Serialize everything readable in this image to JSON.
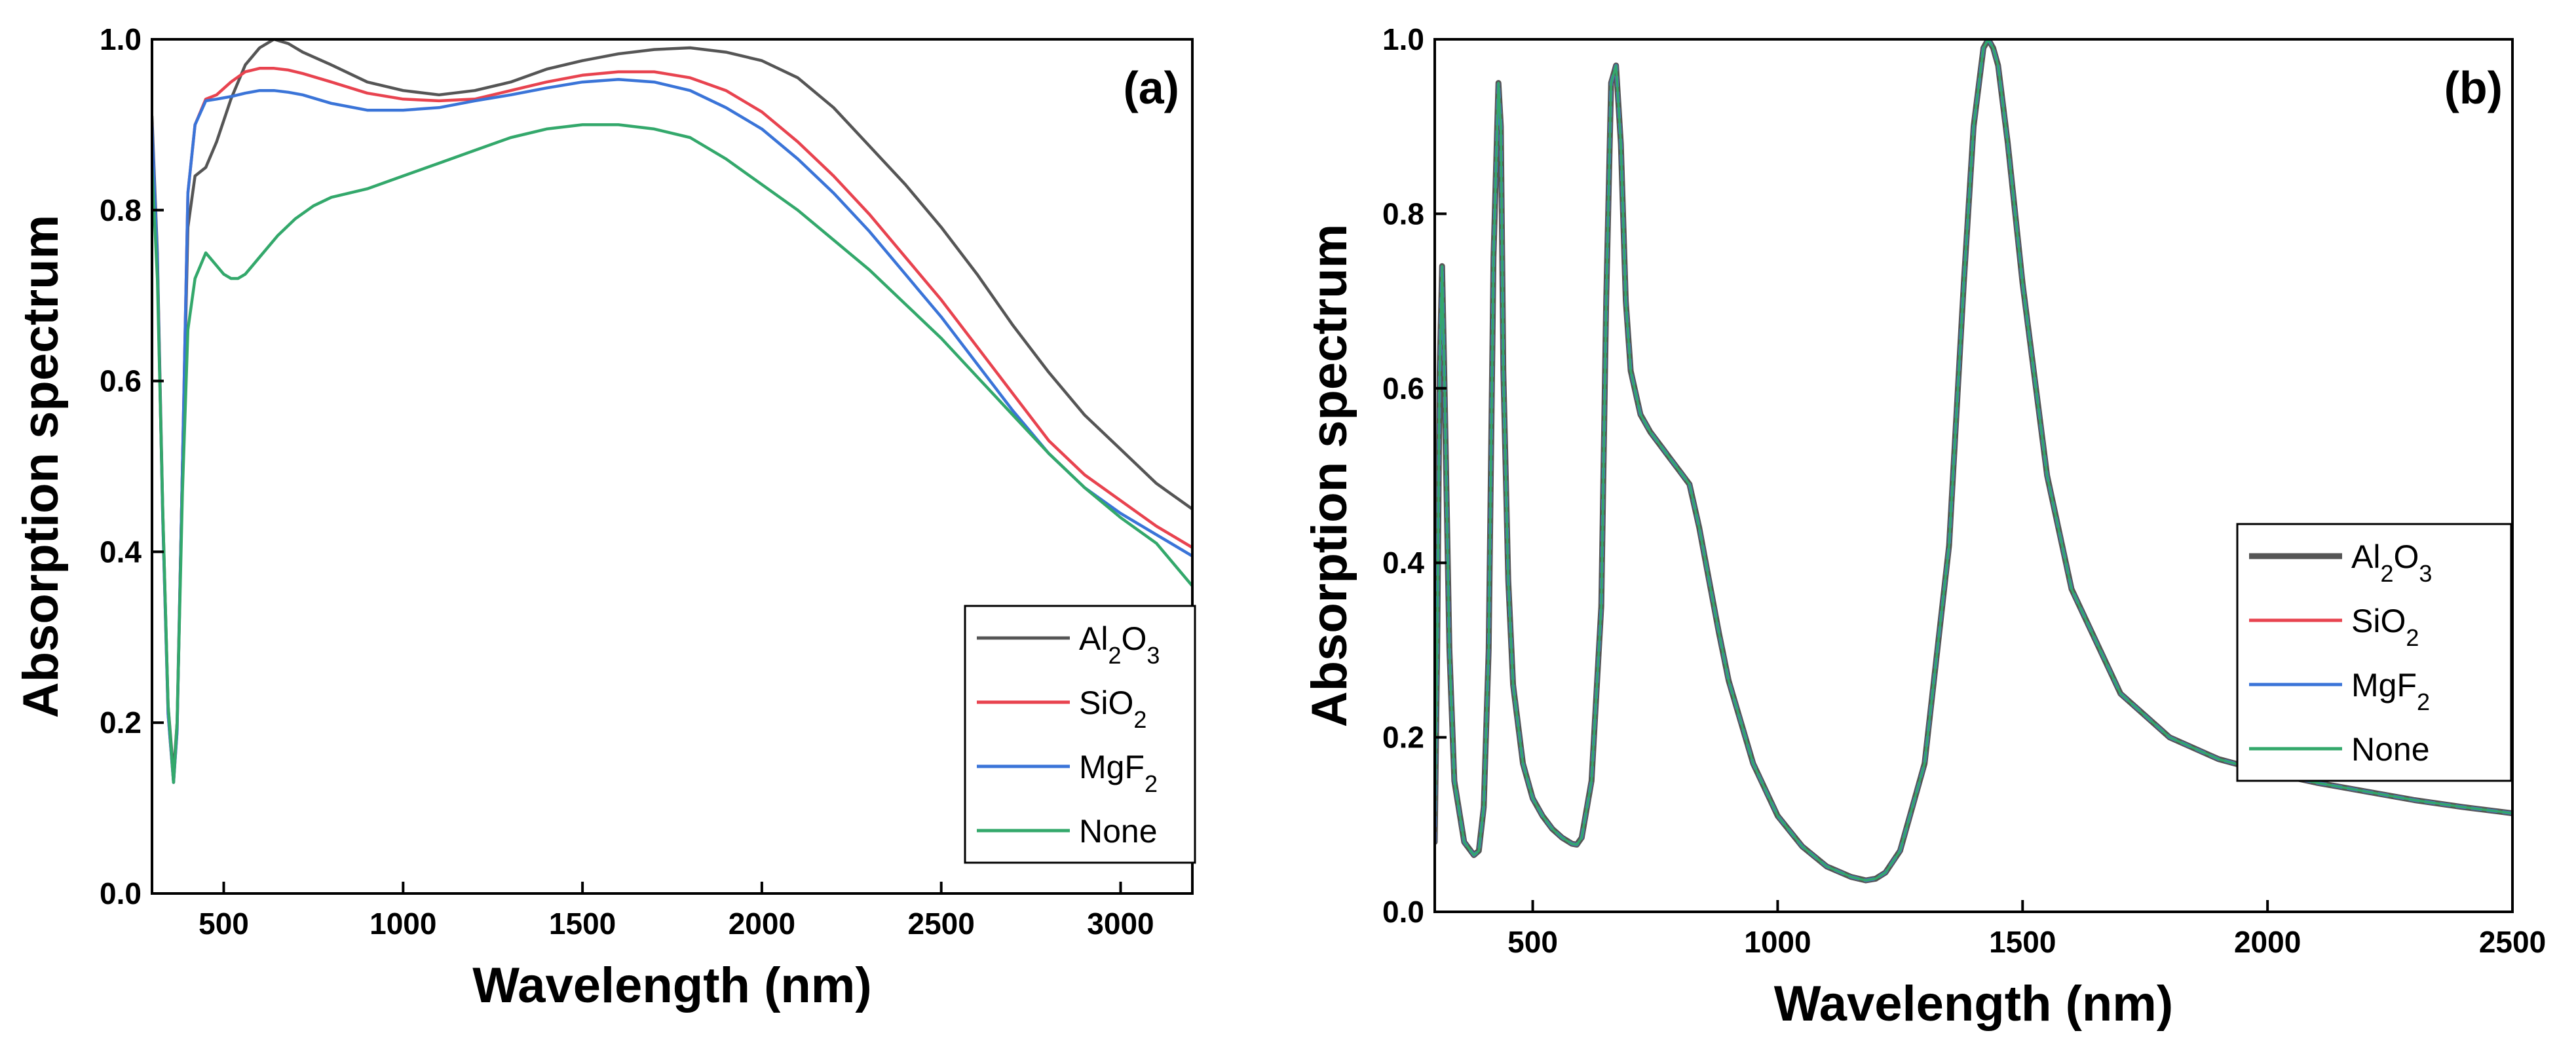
{
  "chart_data": [
    {
      "type": "line",
      "panel_label": "(a)",
      "xlabel": "Wavelength (nm)",
      "ylabel": "Absorption spectrum",
      "xlim": [
        300,
        3200
      ],
      "ylim": [
        0.0,
        1.0
      ],
      "xticks": [
        500,
        1000,
        1500,
        2000,
        2500,
        3000
      ],
      "yticks": [
        0.0,
        0.2,
        0.4,
        0.6,
        0.8,
        1.0
      ],
      "legend_position": "bottom-right",
      "series": [
        {
          "name": "Al2O3",
          "sub": "Al2O3",
          "color": "#555555",
          "x": [
            300,
            315,
            330,
            345,
            360,
            370,
            385,
            400,
            420,
            450,
            480,
            520,
            560,
            600,
            640,
            680,
            720,
            800,
            900,
            1000,
            1100,
            1200,
            1300,
            1400,
            1500,
            1600,
            1700,
            1800,
            1900,
            2000,
            2100,
            2200,
            2300,
            2400,
            2500,
            2600,
            2700,
            2800,
            2900,
            3000,
            3100,
            3200
          ],
          "y": [
            0.91,
            0.75,
            0.45,
            0.22,
            0.14,
            0.2,
            0.5,
            0.78,
            0.84,
            0.85,
            0.88,
            0.93,
            0.97,
            0.99,
            1.0,
            0.995,
            0.985,
            0.97,
            0.95,
            0.94,
            0.935,
            0.94,
            0.95,
            0.965,
            0.975,
            0.983,
            0.988,
            0.99,
            0.985,
            0.975,
            0.955,
            0.92,
            0.875,
            0.83,
            0.78,
            0.725,
            0.665,
            0.61,
            0.56,
            0.52,
            0.48,
            0.45
          ]
        },
        {
          "name": "SiO2",
          "sub": "SiO2",
          "color": "#e8434f",
          "x": [
            300,
            315,
            330,
            345,
            360,
            370,
            385,
            400,
            420,
            450,
            480,
            520,
            560,
            600,
            640,
            680,
            720,
            800,
            900,
            1000,
            1100,
            1200,
            1300,
            1400,
            1500,
            1600,
            1700,
            1800,
            1900,
            2000,
            2100,
            2200,
            2300,
            2400,
            2500,
            2600,
            2700,
            2800,
            2900,
            3000,
            3100,
            3200
          ],
          "y": [
            0.9,
            0.74,
            0.44,
            0.21,
            0.13,
            0.19,
            0.5,
            0.82,
            0.9,
            0.93,
            0.935,
            0.95,
            0.962,
            0.966,
            0.966,
            0.964,
            0.96,
            0.95,
            0.937,
            0.93,
            0.928,
            0.93,
            0.94,
            0.95,
            0.958,
            0.962,
            0.962,
            0.955,
            0.94,
            0.915,
            0.88,
            0.84,
            0.795,
            0.745,
            0.695,
            0.64,
            0.585,
            0.53,
            0.49,
            0.46,
            0.43,
            0.405
          ]
        },
        {
          "name": "MgF2",
          "sub": "MgF2",
          "color": "#3a74d8",
          "x": [
            300,
            315,
            330,
            345,
            360,
            370,
            385,
            400,
            420,
            450,
            480,
            520,
            560,
            600,
            640,
            680,
            720,
            800,
            900,
            1000,
            1100,
            1200,
            1300,
            1400,
            1500,
            1600,
            1700,
            1800,
            1900,
            2000,
            2100,
            2200,
            2300,
            2400,
            2500,
            2600,
            2700,
            2800,
            2900,
            3000,
            3100,
            3200
          ],
          "y": [
            0.9,
            0.74,
            0.44,
            0.21,
            0.13,
            0.19,
            0.5,
            0.82,
            0.9,
            0.928,
            0.93,
            0.933,
            0.937,
            0.94,
            0.94,
            0.938,
            0.935,
            0.925,
            0.917,
            0.917,
            0.92,
            0.928,
            0.935,
            0.943,
            0.95,
            0.953,
            0.95,
            0.94,
            0.92,
            0.895,
            0.86,
            0.82,
            0.775,
            0.725,
            0.675,
            0.62,
            0.565,
            0.515,
            0.475,
            0.445,
            0.42,
            0.395
          ]
        },
        {
          "name": "None",
          "sub": "None",
          "color": "#33a86b",
          "x": [
            300,
            315,
            330,
            345,
            360,
            370,
            385,
            400,
            420,
            450,
            480,
            500,
            520,
            540,
            560,
            600,
            650,
            700,
            750,
            800,
            900,
            1000,
            1100,
            1200,
            1300,
            1400,
            1500,
            1600,
            1700,
            1800,
            1900,
            2000,
            2100,
            2200,
            2300,
            2400,
            2500,
            2600,
            2700,
            2800,
            2900,
            3000,
            3100,
            3200
          ],
          "y": [
            0.85,
            0.72,
            0.45,
            0.22,
            0.13,
            0.2,
            0.47,
            0.66,
            0.72,
            0.75,
            0.735,
            0.725,
            0.72,
            0.72,
            0.725,
            0.745,
            0.77,
            0.79,
            0.805,
            0.815,
            0.825,
            0.84,
            0.855,
            0.87,
            0.885,
            0.895,
            0.9,
            0.9,
            0.895,
            0.885,
            0.86,
            0.83,
            0.8,
            0.765,
            0.73,
            0.69,
            0.65,
            0.605,
            0.56,
            0.515,
            0.475,
            0.44,
            0.41,
            0.36
          ]
        }
      ]
    },
    {
      "type": "line",
      "panel_label": "(b)",
      "xlabel": "Wavelength (nm)",
      "ylabel": "Absorption spectrum",
      "xlim": [
        300,
        2500
      ],
      "ylim": [
        0.0,
        1.0
      ],
      "xticks": [
        500,
        1000,
        1500,
        2000,
        2500
      ],
      "yticks": [
        0.0,
        0.2,
        0.4,
        0.6,
        0.8,
        1.0
      ],
      "legend_position": "center-right",
      "series": [
        {
          "name": "Al2O3",
          "sub": "Al2O3",
          "color": "#555555",
          "x": [
            300,
            305,
            310,
            315,
            320,
            330,
            340,
            360,
            380,
            390,
            400,
            410,
            420,
            430,
            435,
            440,
            450,
            460,
            480,
            500,
            520,
            540,
            560,
            580,
            590,
            600,
            620,
            640,
            650,
            660,
            670,
            680,
            690,
            700,
            720,
            740,
            760,
            780,
            800,
            820,
            840,
            860,
            880,
            900,
            950,
            1000,
            1050,
            1100,
            1150,
            1180,
            1200,
            1220,
            1250,
            1300,
            1350,
            1380,
            1400,
            1420,
            1430,
            1440,
            1450,
            1470,
            1500,
            1550,
            1600,
            1700,
            1800,
            1900,
            2000,
            2100,
            2200,
            2300,
            2400,
            2500
          ],
          "y": [
            0.08,
            0.3,
            0.62,
            0.74,
            0.6,
            0.3,
            0.15,
            0.08,
            0.065,
            0.07,
            0.12,
            0.3,
            0.75,
            0.95,
            0.9,
            0.62,
            0.38,
            0.26,
            0.17,
            0.13,
            0.11,
            0.095,
            0.085,
            0.078,
            0.077,
            0.085,
            0.15,
            0.35,
            0.7,
            0.95,
            0.97,
            0.88,
            0.7,
            0.62,
            0.57,
            0.55,
            0.535,
            0.52,
            0.505,
            0.49,
            0.44,
            0.38,
            0.32,
            0.265,
            0.17,
            0.11,
            0.075,
            0.052,
            0.04,
            0.036,
            0.038,
            0.045,
            0.07,
            0.17,
            0.42,
            0.72,
            0.9,
            0.99,
            1.0,
            0.99,
            0.97,
            0.88,
            0.72,
            0.5,
            0.37,
            0.25,
            0.2,
            0.175,
            0.16,
            0.148,
            0.138,
            0.128,
            0.12,
            0.113
          ]
        },
        {
          "name": "SiO2",
          "sub": "SiO2",
          "color": "#e8434f",
          "x": [
            300,
            305,
            310,
            315,
            320,
            330,
            340,
            360,
            380,
            390,
            400,
            410,
            420,
            430,
            435,
            440,
            450,
            460,
            480,
            500,
            520,
            540,
            560,
            580,
            590,
            600,
            620,
            640,
            650,
            660,
            670,
            680,
            690,
            700,
            720,
            740,
            760,
            780,
            800,
            820,
            840,
            860,
            880,
            900,
            950,
            1000,
            1050,
            1100,
            1150,
            1180,
            1200,
            1220,
            1250,
            1300,
            1350,
            1380,
            1400,
            1420,
            1430,
            1440,
            1450,
            1470,
            1500,
            1550,
            1600,
            1700,
            1800,
            1900,
            2000,
            2100,
            2200,
            2300,
            2400,
            2500
          ],
          "y": [
            0.08,
            0.3,
            0.62,
            0.74,
            0.6,
            0.3,
            0.15,
            0.08,
            0.065,
            0.07,
            0.12,
            0.3,
            0.75,
            0.95,
            0.9,
            0.62,
            0.38,
            0.26,
            0.17,
            0.13,
            0.11,
            0.095,
            0.085,
            0.078,
            0.077,
            0.085,
            0.15,
            0.35,
            0.7,
            0.95,
            0.97,
            0.88,
            0.7,
            0.62,
            0.57,
            0.55,
            0.535,
            0.52,
            0.505,
            0.49,
            0.44,
            0.38,
            0.32,
            0.265,
            0.17,
            0.11,
            0.075,
            0.052,
            0.04,
            0.036,
            0.038,
            0.045,
            0.07,
            0.17,
            0.42,
            0.72,
            0.9,
            0.99,
            1.0,
            0.99,
            0.97,
            0.88,
            0.72,
            0.5,
            0.37,
            0.25,
            0.2,
            0.175,
            0.16,
            0.148,
            0.138,
            0.128,
            0.12,
            0.113
          ]
        },
        {
          "name": "MgF2",
          "sub": "MgF2",
          "color": "#3a74d8",
          "x": [
            300,
            305,
            310,
            315,
            320,
            330,
            340,
            360,
            380,
            390,
            400,
            410,
            420,
            430,
            435,
            440,
            450,
            460,
            480,
            500,
            520,
            540,
            560,
            580,
            590,
            600,
            620,
            640,
            650,
            660,
            670,
            680,
            690,
            700,
            720,
            740,
            760,
            780,
            800,
            820,
            840,
            860,
            880,
            900,
            950,
            1000,
            1050,
            1100,
            1150,
            1180,
            1200,
            1220,
            1250,
            1300,
            1350,
            1380,
            1400,
            1420,
            1430,
            1440,
            1450,
            1470,
            1500,
            1550,
            1600,
            1700,
            1800,
            1900,
            2000,
            2100,
            2200,
            2300,
            2400,
            2500
          ],
          "y": [
            0.08,
            0.3,
            0.62,
            0.74,
            0.6,
            0.3,
            0.15,
            0.08,
            0.065,
            0.07,
            0.12,
            0.3,
            0.75,
            0.95,
            0.9,
            0.62,
            0.38,
            0.26,
            0.17,
            0.13,
            0.11,
            0.095,
            0.085,
            0.078,
            0.077,
            0.085,
            0.15,
            0.35,
            0.7,
            0.95,
            0.97,
            0.88,
            0.7,
            0.62,
            0.57,
            0.55,
            0.535,
            0.52,
            0.505,
            0.49,
            0.44,
            0.38,
            0.32,
            0.265,
            0.17,
            0.11,
            0.075,
            0.052,
            0.04,
            0.036,
            0.038,
            0.045,
            0.07,
            0.17,
            0.42,
            0.72,
            0.9,
            0.99,
            1.0,
            0.99,
            0.97,
            0.88,
            0.72,
            0.5,
            0.37,
            0.25,
            0.2,
            0.175,
            0.16,
            0.148,
            0.138,
            0.128,
            0.12,
            0.113
          ]
        },
        {
          "name": "None",
          "sub": "None",
          "color": "#33a86b",
          "x": [
            300,
            305,
            310,
            315,
            320,
            330,
            340,
            360,
            380,
            390,
            400,
            410,
            420,
            430,
            435,
            440,
            450,
            460,
            480,
            500,
            520,
            540,
            560,
            580,
            590,
            600,
            620,
            640,
            650,
            660,
            670,
            680,
            690,
            700,
            720,
            740,
            760,
            780,
            800,
            820,
            840,
            860,
            880,
            900,
            950,
            1000,
            1050,
            1100,
            1150,
            1180,
            1200,
            1220,
            1250,
            1300,
            1350,
            1380,
            1400,
            1420,
            1430,
            1440,
            1450,
            1470,
            1500,
            1550,
            1600,
            1700,
            1800,
            1900,
            2000,
            2100,
            2200,
            2300,
            2400,
            2500
          ],
          "y": [
            0.08,
            0.3,
            0.62,
            0.74,
            0.6,
            0.3,
            0.15,
            0.08,
            0.065,
            0.07,
            0.12,
            0.3,
            0.75,
            0.95,
            0.9,
            0.62,
            0.38,
            0.26,
            0.17,
            0.13,
            0.11,
            0.095,
            0.085,
            0.078,
            0.077,
            0.085,
            0.15,
            0.35,
            0.7,
            0.95,
            0.97,
            0.88,
            0.7,
            0.62,
            0.57,
            0.55,
            0.535,
            0.52,
            0.505,
            0.49,
            0.44,
            0.38,
            0.32,
            0.265,
            0.17,
            0.11,
            0.075,
            0.052,
            0.04,
            0.036,
            0.038,
            0.045,
            0.07,
            0.17,
            0.42,
            0.72,
            0.9,
            0.99,
            1.0,
            0.99,
            0.97,
            0.88,
            0.72,
            0.5,
            0.37,
            0.25,
            0.2,
            0.175,
            0.16,
            0.148,
            0.138,
            0.128,
            0.12,
            0.113
          ]
        }
      ]
    }
  ]
}
